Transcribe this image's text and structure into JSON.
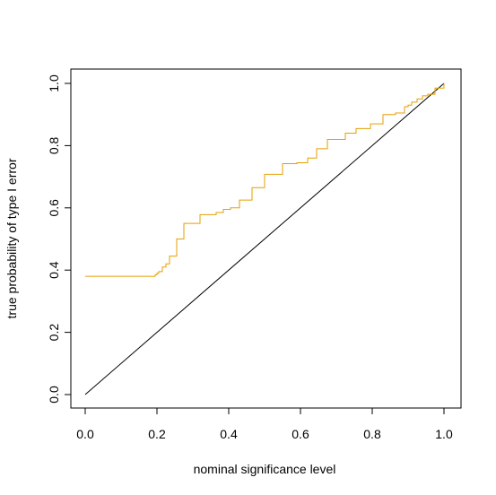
{
  "chart_data": {
    "type": "line",
    "xlabel": "nominal significance level",
    "ylabel": "true probability of type I error",
    "xlim": [
      0,
      1
    ],
    "ylim": [
      0,
      1
    ],
    "xticks": [
      0.0,
      0.2,
      0.4,
      0.6,
      0.8,
      1.0
    ],
    "yticks": [
      0.0,
      0.2,
      0.4,
      0.6,
      0.8,
      1.0
    ],
    "xtick_labels": [
      "0.0",
      "0.2",
      "0.4",
      "0.6",
      "0.8",
      "1.0"
    ],
    "ytick_labels": [
      "0.0",
      "0.2",
      "0.4",
      "0.6",
      "0.8",
      "1.0"
    ],
    "grid": false,
    "legend": "none",
    "series": [
      {
        "color": "#000000",
        "step": false,
        "x": [
          0.0,
          1.0
        ],
        "y": [
          0.0,
          1.0
        ]
      },
      {
        "color": "#E69F00",
        "step": true,
        "x": [
          0.0,
          0.195,
          0.2,
          0.205,
          0.215,
          0.225,
          0.235,
          0.255,
          0.275,
          0.285,
          0.32,
          0.365,
          0.385,
          0.405,
          0.43,
          0.465,
          0.5,
          0.55,
          0.59,
          0.62,
          0.645,
          0.675,
          0.725,
          0.755,
          0.795,
          0.83,
          0.865,
          0.89,
          0.9,
          0.91,
          0.925,
          0.94,
          0.955,
          0.975,
          1.0
        ],
        "y": [
          0.38,
          0.385,
          0.39,
          0.395,
          0.41,
          0.42,
          0.445,
          0.5,
          0.55,
          0.55,
          0.578,
          0.585,
          0.595,
          0.6,
          0.625,
          0.665,
          0.708,
          0.742,
          0.745,
          0.76,
          0.79,
          0.82,
          0.84,
          0.855,
          0.87,
          0.9,
          0.905,
          0.925,
          0.93,
          0.94,
          0.95,
          0.96,
          0.965,
          0.985,
          1.0
        ]
      }
    ]
  }
}
